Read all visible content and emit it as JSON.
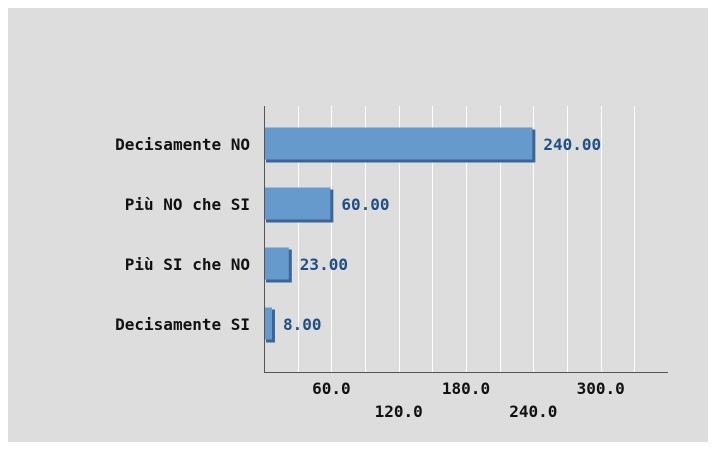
{
  "chart_data": {
    "type": "bar",
    "orientation": "horizontal",
    "categories": [
      "Decisamente NO",
      "Più NO che SI",
      "Più SI che NO",
      "Decisamente SI"
    ],
    "values": [
      240,
      60,
      23,
      8
    ],
    "value_labels": [
      "240.00",
      "60.00",
      "23.00",
      "8.00"
    ],
    "xlim": [
      0,
      360
    ],
    "xticks": [
      60,
      120,
      180,
      240,
      300
    ],
    "xtick_labels": [
      "60.0",
      "120.0",
      "180.0",
      "240.0",
      "300.0"
    ],
    "grid": "vertical",
    "legend": "none"
  },
  "colors": {
    "background": "#dddddd",
    "bar_fill": "#6699cc",
    "bar_shadow": "#3a6596",
    "grid": "#ffffff",
    "value_text": "#1f4f86",
    "axis": "#555555"
  }
}
